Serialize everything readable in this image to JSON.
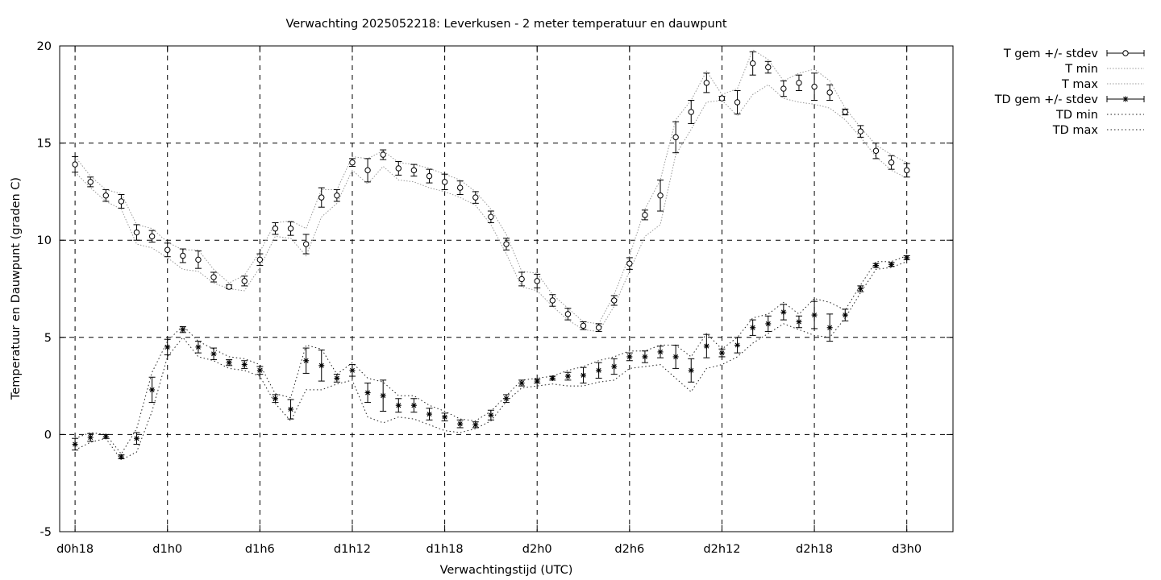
{
  "chart_data": {
    "type": "line",
    "title": "Verwachting 2025052218: Leverkusen - 2 meter temperatuur en dauwpunt",
    "xlabel": "Verwachtingstijd (UTC)",
    "ylabel": "Temperatuur en Dauwpunt (graden C)",
    "xlim": [
      -1,
      57
    ],
    "ylim": [
      -5,
      20
    ],
    "y_ticks": [
      -5,
      0,
      5,
      10,
      15,
      20
    ],
    "x_ticks": [
      {
        "x": 0,
        "label": "d0h18"
      },
      {
        "x": 6,
        "label": "d1h0"
      },
      {
        "x": 12,
        "label": "d1h6"
      },
      {
        "x": 18,
        "label": "d1h12"
      },
      {
        "x": 24,
        "label": "d1h18"
      },
      {
        "x": 30,
        "label": "d2h0"
      },
      {
        "x": 36,
        "label": "d2h6"
      },
      {
        "x": 42,
        "label": "d2h12"
      },
      {
        "x": 48,
        "label": "d2h18"
      },
      {
        "x": 54,
        "label": "d3h0"
      }
    ],
    "x_unit": "hours since d0h18",
    "grid": true,
    "legend_position": "outside-top-right",
    "legend": [
      "T gem +/- stdev",
      "T min",
      "T max",
      "TD gem +/- stdev",
      "TD min",
      "TD max"
    ],
    "x": [
      0,
      1,
      2,
      3,
      4,
      5,
      6,
      7,
      8,
      9,
      10,
      11,
      12,
      13,
      14,
      15,
      16,
      17,
      18,
      19,
      20,
      21,
      22,
      23,
      24,
      25,
      26,
      27,
      28,
      29,
      30,
      31,
      32,
      33,
      34,
      35,
      36,
      37,
      38,
      39,
      40,
      41,
      42,
      43,
      44,
      45,
      46,
      47,
      48,
      49,
      50,
      51,
      52,
      53,
      54
    ],
    "series": [
      {
        "name": "T gem +/- stdev",
        "marker": "circle",
        "values": [
          13.9,
          13.0,
          12.3,
          12.0,
          10.4,
          10.2,
          9.5,
          9.2,
          9.0,
          8.1,
          7.6,
          7.9,
          9.0,
          10.6,
          10.6,
          9.8,
          12.2,
          12.3,
          14.0,
          13.6,
          14.4,
          13.7,
          13.6,
          13.3,
          13.0,
          12.7,
          12.2,
          11.2,
          9.8,
          8.0,
          7.9,
          6.9,
          6.2,
          5.6,
          5.5,
          6.9,
          8.8,
          11.3,
          12.3,
          15.3,
          16.6,
          18.1,
          17.3,
          17.1,
          19.1,
          18.9,
          17.8,
          18.1,
          17.9,
          17.6,
          16.6,
          15.6,
          14.6,
          14.0,
          13.6
        ],
        "stdev": [
          0.4,
          0.25,
          0.3,
          0.35,
          0.4,
          0.3,
          0.35,
          0.35,
          0.45,
          0.25,
          0.1,
          0.25,
          0.3,
          0.3,
          0.35,
          0.5,
          0.5,
          0.3,
          0.2,
          0.6,
          0.25,
          0.35,
          0.3,
          0.35,
          0.4,
          0.35,
          0.3,
          0.3,
          0.3,
          0.35,
          0.35,
          0.3,
          0.3,
          0.2,
          0.2,
          0.25,
          0.3,
          0.25,
          0.8,
          0.8,
          0.6,
          0.5,
          0.1,
          0.6,
          0.6,
          0.3,
          0.4,
          0.4,
          0.7,
          0.4,
          0.15,
          0.3,
          0.4,
          0.35,
          0.35
        ]
      },
      {
        "name": "T min",
        "style": "dotted",
        "values": [
          13.5,
          12.7,
          12.0,
          11.6,
          9.8,
          9.6,
          9.1,
          8.5,
          8.4,
          7.8,
          7.5,
          7.4,
          8.6,
          10.2,
          10.1,
          9.2,
          11.2,
          11.9,
          13.6,
          12.9,
          13.8,
          13.1,
          13.0,
          12.7,
          12.5,
          12.2,
          11.8,
          10.8,
          9.3,
          7.6,
          7.4,
          6.6,
          5.9,
          5.4,
          5.3,
          6.6,
          8.4,
          10.2,
          10.8,
          14.4,
          15.7,
          17.1,
          17.2,
          16.4,
          17.5,
          18.0,
          17.3,
          17.1,
          17.0,
          16.8,
          16.2,
          15.3,
          14.3,
          13.6,
          13.2
        ]
      },
      {
        "name": "T max",
        "style": "dotted",
        "values": [
          14.3,
          13.3,
          12.6,
          12.4,
          10.8,
          10.6,
          9.9,
          9.5,
          9.5,
          8.5,
          7.8,
          8.2,
          9.4,
          10.9,
          11.0,
          10.6,
          12.6,
          12.6,
          14.3,
          14.2,
          14.6,
          14.0,
          13.9,
          13.7,
          13.4,
          13.1,
          12.5,
          11.6,
          10.3,
          8.4,
          8.3,
          7.2,
          6.5,
          5.8,
          5.7,
          7.2,
          9.2,
          11.6,
          13.1,
          16.2,
          17.2,
          18.7,
          17.5,
          17.8,
          19.8,
          19.3,
          18.2,
          18.6,
          18.8,
          18.2,
          16.8,
          15.8,
          14.9,
          14.4,
          14.0
        ]
      },
      {
        "name": "TD gem +/- stdev",
        "marker": "star",
        "values": [
          -0.5,
          -0.15,
          -0.1,
          -1.15,
          -0.2,
          2.3,
          4.5,
          5.4,
          4.5,
          4.15,
          3.7,
          3.6,
          3.3,
          1.85,
          1.3,
          3.8,
          3.55,
          2.9,
          3.3,
          2.15,
          2.0,
          1.5,
          1.5,
          1.05,
          0.9,
          0.55,
          0.5,
          1.0,
          1.85,
          2.65,
          2.75,
          2.9,
          3.0,
          3.05,
          3.3,
          3.5,
          4.0,
          4.0,
          4.25,
          4.0,
          3.3,
          4.55,
          4.2,
          4.6,
          5.5,
          5.7,
          6.3,
          5.8,
          6.15,
          5.5,
          6.15,
          7.5,
          8.7,
          8.75,
          9.1
        ],
        "stdev": [
          0.3,
          0.2,
          0.1,
          0.1,
          0.3,
          0.65,
          0.4,
          0.15,
          0.3,
          0.3,
          0.15,
          0.2,
          0.2,
          0.2,
          0.5,
          0.65,
          0.8,
          0.2,
          0.3,
          0.5,
          0.8,
          0.35,
          0.35,
          0.3,
          0.2,
          0.2,
          0.15,
          0.25,
          0.2,
          0.15,
          0.1,
          0.1,
          0.2,
          0.4,
          0.4,
          0.4,
          0.2,
          0.3,
          0.3,
          0.6,
          0.6,
          0.6,
          0.2,
          0.4,
          0.4,
          0.4,
          0.4,
          0.3,
          0.7,
          0.7,
          0.3,
          0.15,
          0.1,
          0.1,
          0.1
        ]
      },
      {
        "name": "TD min",
        "style": "dotted",
        "values": [
          -0.8,
          -0.4,
          -0.2,
          -1.3,
          -0.9,
          1.2,
          4.0,
          5.0,
          4.0,
          3.8,
          3.4,
          3.3,
          3.0,
          1.6,
          0.7,
          2.3,
          2.3,
          2.6,
          2.8,
          0.9,
          0.6,
          0.9,
          0.8,
          0.5,
          0.2,
          0.1,
          0.3,
          0.7,
          1.7,
          2.4,
          2.5,
          2.6,
          2.5,
          2.5,
          2.7,
          2.8,
          3.4,
          3.5,
          3.6,
          2.9,
          2.2,
          3.4,
          3.6,
          4.0,
          4.7,
          5.2,
          5.7,
          5.4,
          5.1,
          5.0,
          6.0,
          7.3,
          8.5,
          8.6,
          8.9
        ]
      },
      {
        "name": "TD max",
        "style": "dotted",
        "values": [
          -0.2,
          0.1,
          0.0,
          -1.0,
          0.3,
          3.2,
          4.8,
          5.6,
          4.8,
          4.4,
          4.0,
          3.9,
          3.6,
          2.1,
          1.9,
          4.6,
          4.4,
          3.1,
          3.7,
          2.9,
          2.7,
          2.0,
          2.0,
          1.5,
          1.2,
          0.8,
          0.7,
          1.2,
          2.0,
          2.8,
          2.9,
          3.0,
          3.3,
          3.5,
          3.8,
          4.0,
          4.3,
          4.3,
          4.6,
          4.6,
          4.0,
          5.2,
          4.4,
          5.0,
          6.0,
          6.2,
          6.8,
          6.2,
          7.0,
          6.8,
          6.4,
          7.7,
          8.9,
          8.9,
          9.2
        ]
      }
    ]
  }
}
